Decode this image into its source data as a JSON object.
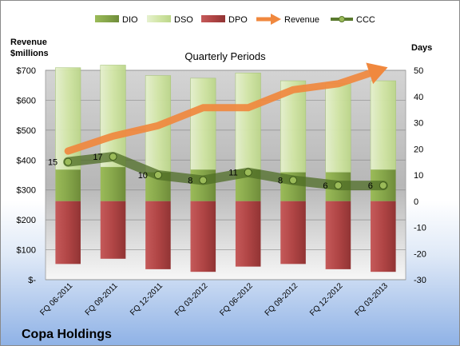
{
  "chart_data": {
    "type": "bar",
    "title": "Quarterly Periods",
    "company": "Copa Holdings",
    "left_axis_label_line1": "Revenue",
    "left_axis_label_line2": "$millions",
    "right_axis_label": "Days",
    "left_axis": {
      "min": 0,
      "max": 700,
      "step": 100,
      "tick_labels": [
        "$-",
        "$100",
        "$200",
        "$300",
        "$400",
        "$500",
        "$600",
        "$700"
      ]
    },
    "right_axis": {
      "min": -30,
      "max": 50,
      "step": 10,
      "tick_labels": [
        "-30",
        "-20",
        "-10",
        "0",
        "10",
        "20",
        "30",
        "40",
        "50"
      ]
    },
    "categories": [
      "FQ 06-2011",
      "FQ 09-2011",
      "FQ 12-2011",
      "FQ 03-2012",
      "FQ 06-2012",
      "FQ 09-2012",
      "FQ 12-2012",
      "FQ 03-2013"
    ],
    "series": [
      {
        "name": "DIO",
        "axis": "right",
        "type": "stacked-bar",
        "color": "#86a64a",
        "values": [
          12,
          13,
          11,
          12,
          12,
          11,
          11,
          12
        ]
      },
      {
        "name": "DSO",
        "axis": "right",
        "type": "stacked-bar",
        "color": "#d6e8b0",
        "values": [
          39,
          39,
          37,
          35,
          37,
          35,
          34,
          34
        ]
      },
      {
        "name": "DPO",
        "axis": "right",
        "type": "stacked-bar-negative",
        "color": "#b84a4a",
        "values": [
          -24,
          -22,
          -26,
          -27,
          -25,
          -24,
          -26,
          -27
        ]
      },
      {
        "name": "Revenue",
        "axis": "left",
        "type": "arrow-line",
        "color": "#f0883e",
        "values": [
          430,
          480,
          515,
          575,
          575,
          635,
          655,
          705
        ]
      },
      {
        "name": "CCC",
        "axis": "right",
        "type": "line",
        "color": "#5a7a2e",
        "values": [
          15,
          17,
          10,
          8,
          11,
          8,
          6,
          6
        ]
      }
    ],
    "ccc_labels": [
      "15",
      "17",
      "10",
      "8",
      "11",
      "8",
      "6",
      "6"
    ],
    "legend_position": "top",
    "grid": true
  }
}
